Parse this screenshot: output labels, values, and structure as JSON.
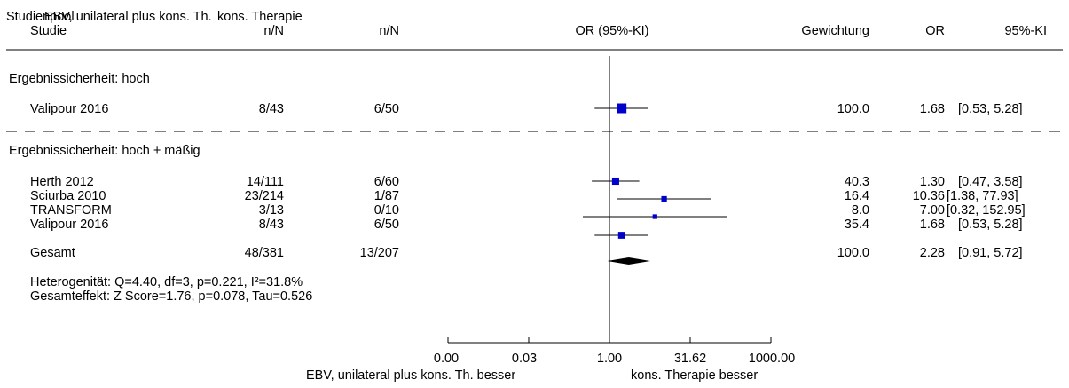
{
  "chart_data": {
    "type": "forest",
    "title": "",
    "header": {
      "study_group": "Studienpool",
      "group1": "EBV, unilateral plus kons. Th.",
      "group2": "kons. Therapie",
      "study": "Studie",
      "n1": "n/N",
      "n2": "n/N",
      "effect": "OR (95%-KI)",
      "weight": "Gewichtung",
      "or": "OR",
      "ci": "95%-KI"
    },
    "x_scale": "log",
    "xlim": [
      0.001,
      1000
    ],
    "x_ticks": [
      0.001,
      0.0316,
      1,
      31.62,
      1000
    ],
    "x_tick_labels": [
      "0.00",
      "0.03",
      "1.00",
      "31.62",
      "1000.00"
    ],
    "x_label_left": "EBV, unilateral plus kons. Th. besser",
    "x_label_right": "kons. Therapie besser",
    "groups": [
      {
        "label": "Ergebnissicherheit: hoch",
        "studies": [
          {
            "name": "Valipour 2016",
            "n1": "8/43",
            "n2": "6/50",
            "weight": 100.0,
            "weight_label": "100.0",
            "or": 1.68,
            "or_label": "1.68",
            "lo": 0.53,
            "hi": 5.28,
            "ci_label": "[0.53, 5.28]"
          }
        ]
      },
      {
        "label": "Ergebnissicherheit: hoch + mäßig",
        "studies": [
          {
            "name": "Herth 2012",
            "n1": "14/111",
            "n2": "6/60",
            "weight": 40.3,
            "weight_label": "40.3",
            "or": 1.3,
            "or_label": "1.30",
            "lo": 0.47,
            "hi": 3.58,
            "ci_label": "[0.47, 3.58]"
          },
          {
            "name": "Sciurba 2010",
            "n1": "23/214",
            "n2": "1/87",
            "weight": 16.4,
            "weight_label": "16.4",
            "or": 10.36,
            "or_label": "10.36",
            "lo": 1.38,
            "hi": 77.93,
            "ci_label": "[1.38, 77.93]"
          },
          {
            "name": "TRANSFORM",
            "n1": "3/13",
            "n2": "0/10",
            "weight": 8.0,
            "weight_label": "8.0",
            "or": 7.0,
            "or_label": "7.00",
            "lo": 0.32,
            "hi": 152.95,
            "ci_label": "[0.32, 152.95]"
          },
          {
            "name": "Valipour 2016",
            "n1": "8/43",
            "n2": "6/50",
            "weight": 35.4,
            "weight_label": "35.4",
            "or": 1.68,
            "or_label": "1.68",
            "lo": 0.53,
            "hi": 5.28,
            "ci_label": "[0.53, 5.28]"
          }
        ],
        "total": {
          "name": "Gesamt",
          "n1": "48/381",
          "n2": "13/207",
          "weight_label": "100.0",
          "or": 2.28,
          "or_label": "2.28",
          "lo": 0.91,
          "hi": 5.72,
          "ci_label": "[0.91, 5.72]"
        },
        "heterogeneity": "Heterogenität: Q=4.40, df=3, p=0.221, I²=31.8%",
        "overall_effect": "Gesamteffekt: Z Score=1.76, p=0.078, Tau=0.526"
      }
    ],
    "colors": {
      "marker": "#0000cc",
      "diamond": "#000000",
      "line": "#000000"
    }
  }
}
